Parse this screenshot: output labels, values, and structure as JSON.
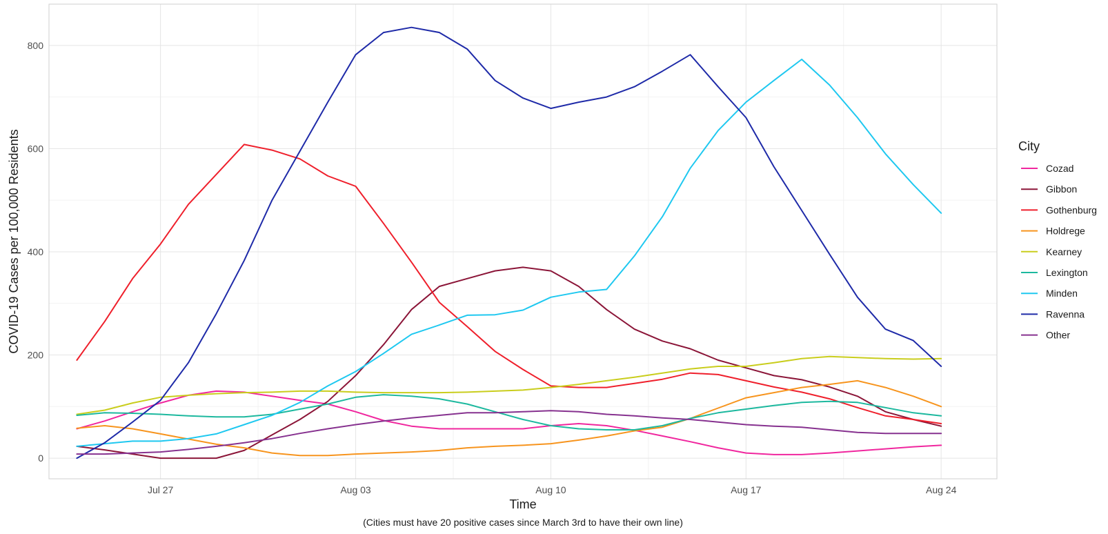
{
  "chart_data": {
    "type": "line",
    "xlabel": "Time",
    "ylabel": "COVID-19 Cases per 100,000 Residents",
    "caption": "(Cities must have 20 positive cases since March 3rd to have their own line)",
    "legend_title": "City",
    "legend_position": "right",
    "grid": true,
    "x_start": "2020-07-24",
    "x_end": "2020-08-25",
    "xlim": [
      "2020-07-23",
      "2020-08-26"
    ],
    "ylim": [
      -40,
      880
    ],
    "x_ticks": [
      {
        "label": "Jul 27",
        "date": "2020-07-27"
      },
      {
        "label": "Aug 03",
        "date": "2020-08-03"
      },
      {
        "label": "Aug 10",
        "date": "2020-08-10"
      },
      {
        "label": "Aug 17",
        "date": "2020-08-17"
      },
      {
        "label": "Aug 24",
        "date": "2020-08-24"
      }
    ],
    "y_ticks": [
      0,
      200,
      400,
      600,
      800
    ],
    "series": [
      {
        "name": "Cozad",
        "color": "#f0269e",
        "values": [
          57,
          72,
          90,
          107,
          122,
          130,
          128,
          120,
          112,
          105,
          90,
          73,
          62,
          57,
          57,
          57,
          57,
          63,
          67,
          63,
          54,
          43,
          32,
          20,
          10,
          7,
          7,
          10,
          14,
          18,
          22,
          25
        ]
      },
      {
        "name": "Gibbon",
        "color": "#8b1538",
        "values": [
          23,
          16,
          8,
          0,
          0,
          0,
          15,
          45,
          75,
          110,
          160,
          220,
          288,
          333,
          348,
          363,
          370,
          363,
          333,
          288,
          250,
          227,
          212,
          190,
          175,
          160,
          152,
          138,
          120,
          90,
          75,
          62
        ]
      },
      {
        "name": "Gothenburg",
        "color": "#ef1f2b",
        "values": [
          190,
          265,
          348,
          415,
          492,
          550,
          608,
          597,
          580,
          547,
          527,
          455,
          380,
          302,
          255,
          207,
          172,
          140,
          137,
          137,
          145,
          153,
          165,
          162,
          150,
          138,
          128,
          115,
          98,
          82,
          75,
          67
        ]
      },
      {
        "name": "Holdrege",
        "color": "#f7941d",
        "values": [
          58,
          63,
          57,
          47,
          37,
          27,
          20,
          10,
          5,
          5,
          8,
          10,
          12,
          15,
          20,
          23,
          25,
          28,
          35,
          43,
          53,
          60,
          77,
          97,
          117,
          127,
          137,
          143,
          150,
          137,
          120,
          100
        ]
      },
      {
        "name": "Kearney",
        "color": "#c9cd1c",
        "values": [
          85,
          93,
          107,
          118,
          122,
          125,
          127,
          128,
          130,
          130,
          128,
          127,
          127,
          127,
          128,
          130,
          132,
          137,
          143,
          150,
          157,
          165,
          173,
          178,
          178,
          185,
          193,
          197,
          195,
          193,
          192,
          193
        ]
      },
      {
        "name": "Lexington",
        "color": "#1cb89e",
        "values": [
          83,
          88,
          87,
          85,
          82,
          80,
          80,
          85,
          95,
          105,
          118,
          123,
          120,
          115,
          105,
          90,
          75,
          63,
          57,
          55,
          55,
          63,
          77,
          88,
          95,
          102,
          108,
          110,
          108,
          98,
          88,
          82
        ]
      },
      {
        "name": "Minden",
        "color": "#1ec8f0",
        "values": [
          23,
          28,
          33,
          33,
          38,
          47,
          65,
          83,
          108,
          140,
          168,
          203,
          240,
          258,
          277,
          278,
          287,
          312,
          322,
          327,
          392,
          468,
          562,
          635,
          690,
          732,
          773,
          723,
          660,
          590,
          530,
          475
        ]
      },
      {
        "name": "Ravenna",
        "color": "#1e2aa8",
        "values": [
          0,
          30,
          70,
          112,
          185,
          280,
          383,
          500,
          595,
          690,
          782,
          825,
          835,
          825,
          793,
          732,
          698,
          678,
          690,
          700,
          720,
          750,
          782,
          720,
          660,
          565,
          480,
          395,
          312,
          250,
          228,
          178
        ]
      },
      {
        "name": "Other",
        "color": "#86318f",
        "values": [
          8,
          8,
          10,
          12,
          17,
          23,
          30,
          38,
          48,
          57,
          65,
          72,
          78,
          83,
          88,
          88,
          90,
          92,
          90,
          85,
          82,
          78,
          75,
          70,
          65,
          62,
          60,
          55,
          50,
          48,
          48,
          48
        ]
      }
    ]
  }
}
